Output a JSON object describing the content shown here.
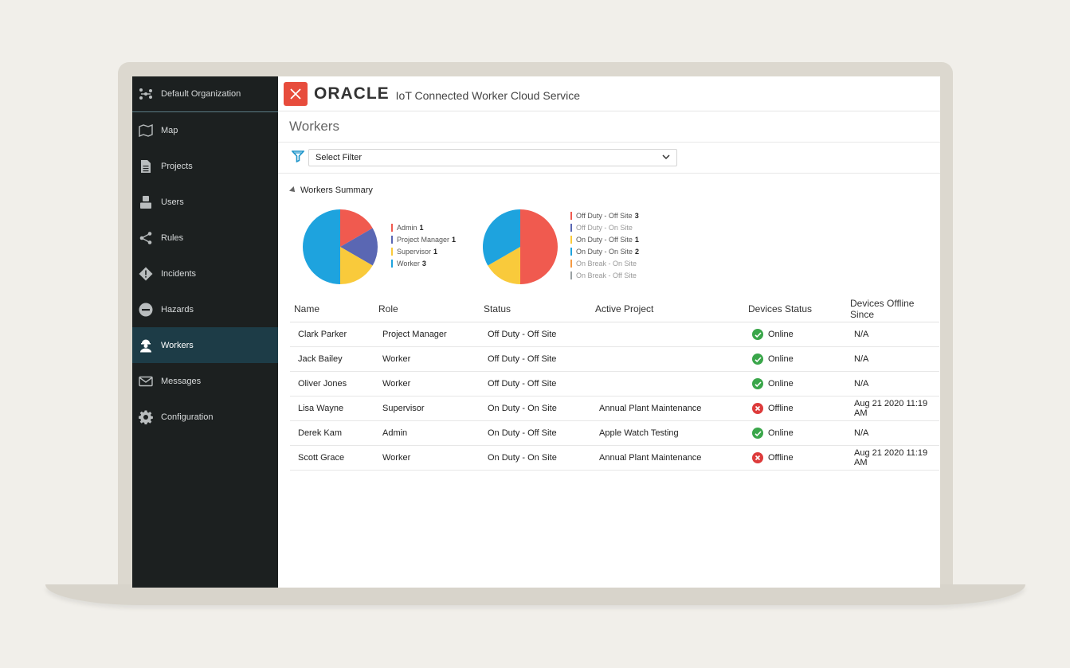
{
  "app": {
    "logo_text": "ORACLE",
    "subtitle": "IoT Connected Worker Cloud Service"
  },
  "sidebar": {
    "org": "Default Organization",
    "items": [
      {
        "label": "Map",
        "icon": "map-icon"
      },
      {
        "label": "Projects",
        "icon": "document-icon"
      },
      {
        "label": "Users",
        "icon": "user-icon"
      },
      {
        "label": "Rules",
        "icon": "share-icon"
      },
      {
        "label": "Incidents",
        "icon": "warning-diamond-icon"
      },
      {
        "label": "Hazards",
        "icon": "minus-circle-icon"
      },
      {
        "label": "Workers",
        "icon": "worker-icon",
        "active": true
      },
      {
        "label": "Messages",
        "icon": "envelope-icon"
      },
      {
        "label": "Configuration",
        "icon": "gear-icon"
      }
    ]
  },
  "page": {
    "title": "Workers",
    "filter_placeholder": "Select Filter",
    "summary_title": "Workers Summary"
  },
  "colors": {
    "red": "#f05a4f",
    "indigo": "#5a67b3",
    "yellow": "#f9ca3b",
    "blue": "#1ea3de",
    "orange": "#f59a42",
    "gray": "#9aa0a3"
  },
  "chart_data": [
    {
      "type": "pie",
      "legend": [
        {
          "label": "Admin",
          "value": 1,
          "color": "#f05a4f"
        },
        {
          "label": "Project Manager",
          "value": 1,
          "color": "#5a67b3"
        },
        {
          "label": "Supervisor",
          "value": 1,
          "color": "#f9ca3b"
        },
        {
          "label": "Worker",
          "value": 3,
          "color": "#1ea3de"
        }
      ]
    },
    {
      "type": "pie",
      "legend": [
        {
          "label": "Off Duty - Off Site",
          "value": 3,
          "color": "#f05a4f"
        },
        {
          "label": "Off Duty - On Site",
          "value": null,
          "color": "#5a67b3"
        },
        {
          "label": "On Duty - Off Site",
          "value": 1,
          "color": "#f9ca3b"
        },
        {
          "label": "On Duty - On Site",
          "value": 2,
          "color": "#1ea3de"
        },
        {
          "label": "On Break - On Site",
          "value": null,
          "color": "#f59a42"
        },
        {
          "label": "On Break - Off Site",
          "value": null,
          "color": "#9aa0a3"
        }
      ]
    }
  ],
  "table": {
    "columns": [
      "Name",
      "Role",
      "Status",
      "Active Project",
      "Devices Status",
      "Devices Offline Since"
    ],
    "rows": [
      [
        "Clark Parker",
        "Project Manager",
        "Off Duty - Off Site",
        "",
        "Online",
        "N/A"
      ],
      [
        "Jack Bailey",
        "Worker",
        "Off Duty - Off Site",
        "",
        "Online",
        "N/A"
      ],
      [
        "Oliver Jones",
        "Worker",
        "Off Duty - Off Site",
        "",
        "Online",
        "N/A"
      ],
      [
        "Lisa Wayne",
        "Supervisor",
        "On Duty - On Site",
        "Annual Plant Maintenance",
        "Offline",
        "Aug 21 2020 11:19 AM"
      ],
      [
        "Derek Kam",
        "Admin",
        "On Duty - Off Site",
        "Apple Watch Testing",
        "Online",
        "N/A"
      ],
      [
        "Scott Grace",
        "Worker",
        "On Duty - On Site",
        "Annual Plant Maintenance",
        "Offline",
        "Aug 21 2020 11:19 AM"
      ]
    ]
  }
}
